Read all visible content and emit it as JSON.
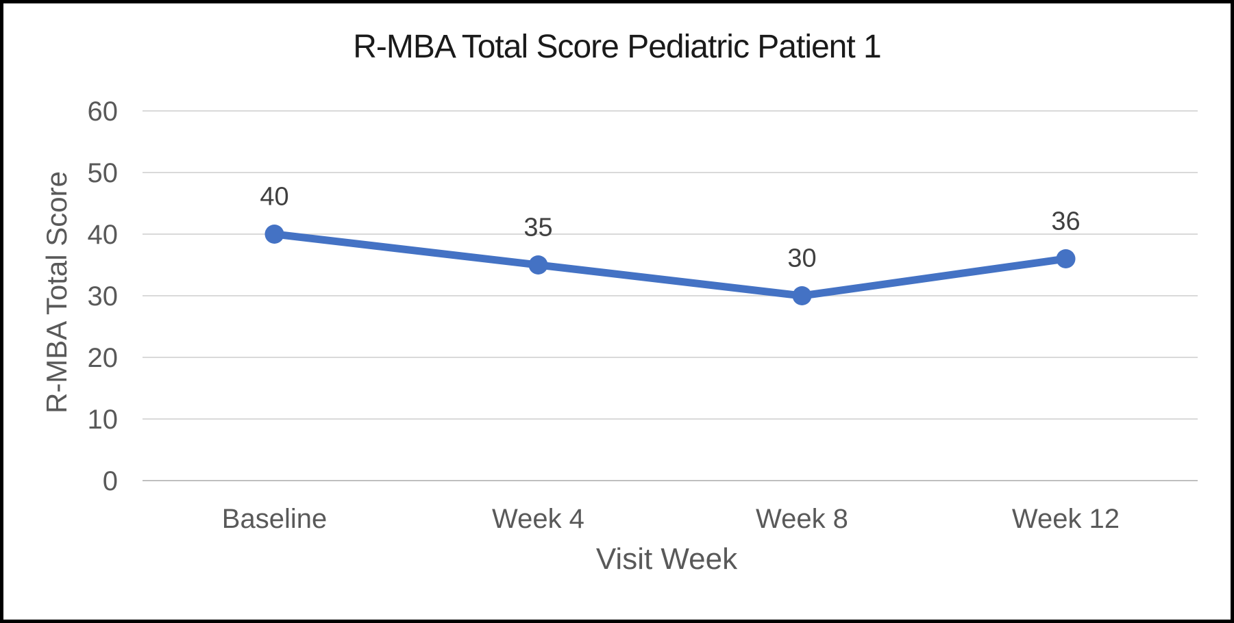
{
  "chart_data": {
    "type": "line",
    "title": "R-MBA Total Score Pediatric Patient 1",
    "xlabel": "Visit Week",
    "ylabel": "R-MBA Total Score",
    "categories": [
      "Baseline",
      "Week 4",
      "Week 8",
      "Week 12"
    ],
    "series": [
      {
        "name": "R-MBA Total Score",
        "values": [
          40,
          35,
          30,
          36
        ]
      }
    ],
    "data_labels": [
      "40",
      "35",
      "30",
      "36"
    ],
    "ylim": [
      0,
      60
    ],
    "yticks": [
      0,
      10,
      20,
      30,
      40,
      50,
      60
    ],
    "grid": "horizontal",
    "legend": "none",
    "colors": {
      "line": "#4472C4",
      "marker": "#4472C4",
      "gridline": "#D9D9D9",
      "axis_line": "#BFBFBF",
      "tick_label": "#595959",
      "category_label": "#595959",
      "axis_title": "#595959",
      "title": "#1A1A1A",
      "data_label": "#404040",
      "background": "#FFFFFF",
      "frame_border": "#000000"
    }
  }
}
